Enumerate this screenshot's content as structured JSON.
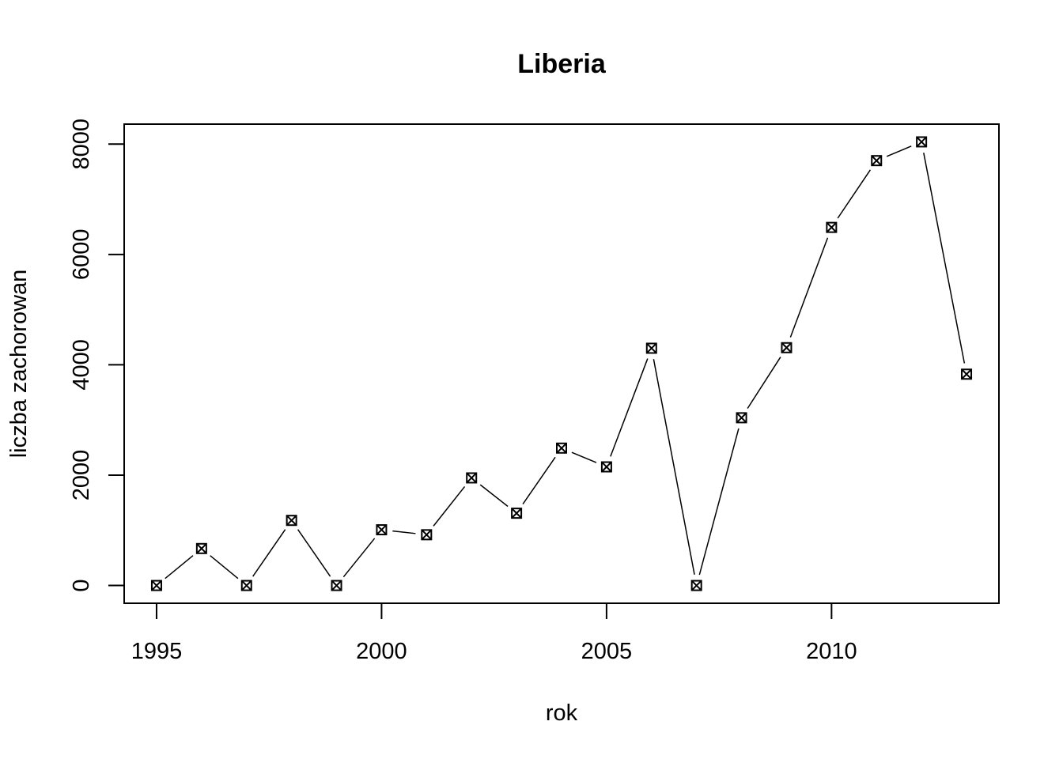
{
  "chart_data": {
    "type": "line",
    "title": "Liberia",
    "xlabel": "rok",
    "ylabel": "liczba zachorowan",
    "x": [
      1995,
      1996,
      1997,
      1998,
      1999,
      2000,
      2001,
      2002,
      2003,
      2004,
      2005,
      2006,
      2007,
      2008,
      2009,
      2010,
      2011,
      2012,
      2013
    ],
    "series": [
      {
        "values": [
          0,
          670,
          0,
          1180,
          0,
          1010,
          920,
          1950,
          1310,
          2490,
          2150,
          4300,
          0,
          3040,
          4310,
          6490,
          7700,
          8040,
          3830
        ]
      }
    ],
    "xlim": [
      1994.28,
      2013.72
    ],
    "ylim": [
      -321.6,
      8361.6
    ],
    "x_ticks": [
      "1995",
      "2000",
      "2005",
      "2010"
    ],
    "y_ticks": [
      "0",
      "2000",
      "4000",
      "6000",
      "8000"
    ],
    "marker": "boxed-x",
    "grid": false,
    "legend": "none"
  }
}
